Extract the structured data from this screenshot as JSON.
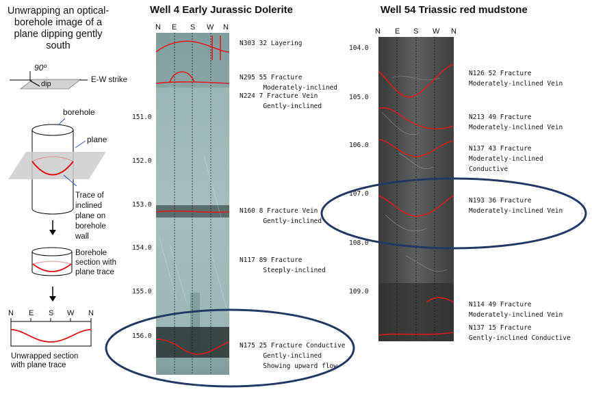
{
  "intro": {
    "title": "Unwrapping an optical-borehole image of a plane dipping gently south",
    "angle_label": "90º",
    "dip_label": "dip",
    "strike_label": "E-W strike",
    "borehole_label": "borehole",
    "plane_label": "plane",
    "trace_label": "Trace of inclined plane on borehole wall",
    "section_label": "Borehole section with plane trace",
    "unwrapped_label": "Unwrapped section with plane trace",
    "compass": [
      "N",
      "E",
      "S",
      "W",
      "N"
    ]
  },
  "well4": {
    "title": "Well 4 Early Jurassic Dolerite",
    "compass": [
      "N",
      "E",
      "S",
      "W",
      "N"
    ],
    "depths": [
      "151.0",
      "152.0",
      "153.0",
      "154.0",
      "155.0",
      "156.0"
    ],
    "annotations": [
      "N303 32 Layering",
      "N295 55 Fracture\n      Moderately-inclined",
      "N224 7 Fracture Vein\n      Gently-inclined",
      "N160 8 Fracture Vein\n      Gently-inclined",
      "N117 89 Fracture\n      Steeply-inclined",
      "N175 25 Fracture Conductive\n      Gently-inclined\n      Showing upward flow"
    ]
  },
  "well54": {
    "title": "Well 54 Triassic red mudstone",
    "compass": [
      "N",
      "E",
      "S",
      "W",
      "N"
    ],
    "depths": [
      "104.0",
      "105.0",
      "106.0",
      "107.0",
      "108.0",
      "109.0"
    ],
    "annotations": [
      "N126 52 Fracture\nModerately-inclined Vein",
      "N213 49 Fracture\nModerately-inclined Vein",
      "N137 43 Fracture\nModerately-inclined\nConductive",
      "N193 36 Fracture\nModerately-inclined Vein",
      "N114 49 Fracture\nModerately-inclined Vein",
      "N137 15 Fracture\nGently-inclined Conductive"
    ]
  }
}
